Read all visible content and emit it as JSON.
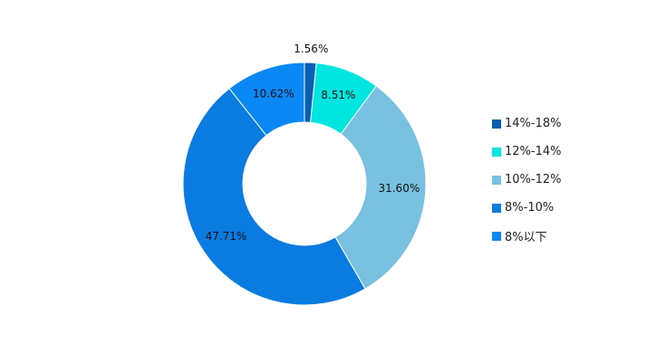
{
  "chart_data": {
    "type": "pie",
    "variant": "donut",
    "title": "",
    "legend_position": "right",
    "slices": [
      {
        "label": "14%-18%",
        "value": 1.56,
        "display": "1.56%",
        "color": "#0a5fb4"
      },
      {
        "label": "12%-14%",
        "value": 8.51,
        "display": "8.51%",
        "color": "#00e5e0"
      },
      {
        "label": "10%-12%",
        "value": 31.6,
        "display": "31.60%",
        "color": "#78c1e1"
      },
      {
        "label": "8%-10%",
        "value": 47.71,
        "display": "47.71%",
        "color": "#0a7be0"
      },
      {
        "label": "8%以下",
        "value": 10.62,
        "display": "10.62%",
        "color": "#0a88f5"
      }
    ]
  }
}
